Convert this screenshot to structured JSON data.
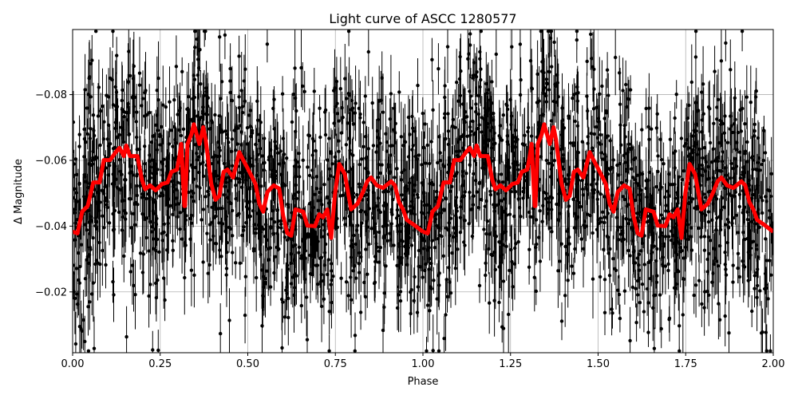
{
  "chart_data": {
    "type": "scatter",
    "title": "Light curve of ASCC 1280577",
    "xlabel": "Phase",
    "ylabel": "Δ Magnitude",
    "xlim": [
      0,
      2
    ],
    "ylim": [
      -0.0015,
      -0.0998
    ],
    "y_inverted": true,
    "grid": true,
    "xticks": [
      "0.00",
      "0.25",
      "0.50",
      "0.75",
      "1.00",
      "1.25",
      "1.50",
      "1.75",
      "2.00"
    ],
    "xtick_values": [
      0,
      0.25,
      0.5,
      0.75,
      1,
      1.25,
      1.5,
      1.75,
      2
    ],
    "yticks": [
      "−0.08",
      "−0.06",
      "−0.04",
      "−0.02"
    ],
    "ytick_values": [
      -0.08,
      -0.06,
      -0.04,
      -0.02
    ],
    "colors": {
      "points": "#000000",
      "model": "#ff0000",
      "grid": "#b0b0b0"
    },
    "points_series": {
      "style": "black points with vertical error bars",
      "marker": "circle"
    },
    "model_series": {
      "style": "thick red line, repeated each phase cycle",
      "period_phase": 1,
      "phase": [
        0.0,
        0.014,
        0.027,
        0.043,
        0.059,
        0.077,
        0.089,
        0.107,
        0.123,
        0.134,
        0.146,
        0.153,
        0.164,
        0.185,
        0.198,
        0.207,
        0.221,
        0.237,
        0.255,
        0.271,
        0.282,
        0.298,
        0.305,
        0.31,
        0.319,
        0.321,
        0.328,
        0.339,
        0.346,
        0.362,
        0.373,
        0.38,
        0.396,
        0.408,
        0.419,
        0.431,
        0.442,
        0.458,
        0.476,
        0.487,
        0.499,
        0.522,
        0.533,
        0.544,
        0.556,
        0.574,
        0.59,
        0.601,
        0.613,
        0.624,
        0.636,
        0.658,
        0.67,
        0.692,
        0.704,
        0.715,
        0.727,
        0.738,
        0.749,
        0.761,
        0.777,
        0.795,
        0.813,
        0.829,
        0.841,
        0.852,
        0.868,
        0.886,
        0.909,
        0.92,
        0.932,
        0.943,
        0.954,
        0.977,
        1.0
      ],
      "magnitude": [
        -0.0383,
        -0.0378,
        -0.0444,
        -0.0461,
        -0.0533,
        -0.0533,
        -0.0601,
        -0.0601,
        -0.0625,
        -0.0638,
        -0.0613,
        -0.0645,
        -0.0613,
        -0.0613,
        -0.0541,
        -0.0512,
        -0.0524,
        -0.0509,
        -0.0528,
        -0.0533,
        -0.0565,
        -0.0572,
        -0.0613,
        -0.065,
        -0.0461,
        -0.0461,
        -0.065,
        -0.0679,
        -0.071,
        -0.065,
        -0.0701,
        -0.0662,
        -0.0528,
        -0.048,
        -0.0492,
        -0.0565,
        -0.0572,
        -0.0548,
        -0.0625,
        -0.0601,
        -0.0577,
        -0.0528,
        -0.0468,
        -0.0444,
        -0.0504,
        -0.0524,
        -0.0514,
        -0.0432,
        -0.0378,
        -0.0371,
        -0.0451,
        -0.0444,
        -0.0402,
        -0.04,
        -0.0436,
        -0.0427,
        -0.0451,
        -0.0364,
        -0.0499,
        -0.0589,
        -0.0558,
        -0.0451,
        -0.0468,
        -0.0504,
        -0.0536,
        -0.0548,
        -0.0524,
        -0.0516,
        -0.0536,
        -0.0524,
        -0.0473,
        -0.0451,
        -0.0419,
        -0.0402,
        -0.0383
      ]
    }
  }
}
